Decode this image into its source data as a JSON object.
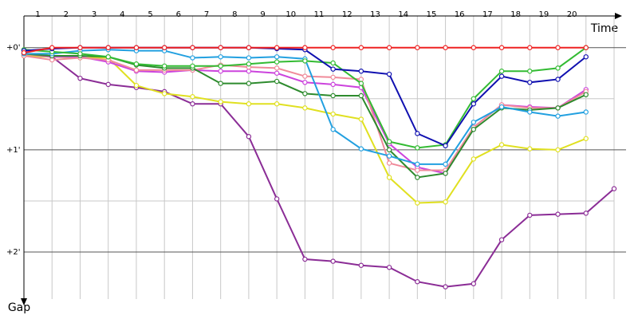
{
  "chart_data": {
    "type": "line",
    "x_title": "Time",
    "y_title": "Gap",
    "categories": [
      1,
      2,
      3,
      4,
      5,
      6,
      7,
      8,
      9,
      10,
      11,
      12,
      13,
      14,
      15,
      16,
      17,
      18,
      19,
      20
    ],
    "x": [
      0,
      1,
      2,
      3,
      4,
      5,
      6,
      7,
      8,
      9,
      10,
      11,
      12,
      13,
      14,
      15,
      16,
      17,
      18,
      19,
      20,
      21
    ],
    "xlim": [
      0,
      21
    ],
    "ylim": [
      -0.31,
      2.46
    ],
    "yticks": [
      {
        "value": 0,
        "label": "+0'"
      },
      {
        "value": 1,
        "label": "+1'"
      },
      {
        "value": 2,
        "label": "+2'"
      }
    ],
    "minor_yticks": [
      0.5,
      1.5
    ],
    "grid": true,
    "series": [
      {
        "color": "#8b2d96",
        "values": [
          0.08,
          0.09,
          0.3,
          0.36,
          0.39,
          0.43,
          0.55,
          0.55,
          0.87,
          1.48,
          2.07,
          2.09,
          2.13,
          2.15,
          2.29,
          2.34,
          2.31,
          1.88,
          1.64,
          1.63,
          1.62,
          1.38
        ]
      },
      {
        "color": "#e0e020",
        "values": [
          0.08,
          0.09,
          0.1,
          0.1,
          0.37,
          0.45,
          0.48,
          0.53,
          0.55,
          0.55,
          0.59,
          0.65,
          0.7,
          1.27,
          1.52,
          1.51,
          1.09,
          0.95,
          0.99,
          1,
          0.89,
          null
        ]
      },
      {
        "color": "#cc44dd",
        "values": [
          0.06,
          0.09,
          0.09,
          0.14,
          0.23,
          0.24,
          0.22,
          0.23,
          0.23,
          0.25,
          0.34,
          0.36,
          0.39,
          0.94,
          1.17,
          1.23,
          0.78,
          0.56,
          0.58,
          0.59,
          0.41,
          null
        ]
      },
      {
        "color": "#f08a9a",
        "values": [
          0.08,
          0.12,
          0.1,
          0.12,
          0.22,
          0.22,
          0.22,
          0.17,
          0.19,
          0.2,
          0.28,
          0.29,
          0.31,
          1.13,
          1.2,
          1.2,
          0.78,
          0.56,
          0.59,
          0.59,
          0.43,
          null
        ]
      },
      {
        "color": "#2e8b2e",
        "values": [
          0.06,
          0.08,
          0.08,
          0.09,
          0.17,
          0.2,
          0.2,
          0.35,
          0.35,
          0.33,
          0.45,
          0.47,
          0.47,
          1,
          1.27,
          1.23,
          0.8,
          0.59,
          0.61,
          0.59,
          0.46,
          null
        ]
      },
      {
        "color": "#22a0e0",
        "values": [
          0.06,
          0.06,
          0.03,
          0.02,
          0.03,
          0.03,
          0.1,
          0.09,
          0.1,
          0.09,
          0.11,
          0.8,
          0.99,
          1.06,
          1.14,
          1.14,
          0.73,
          0.58,
          0.63,
          0.67,
          0.63,
          null
        ]
      },
      {
        "color": "#33bb33",
        "values": [
          0.02,
          0.04,
          0.06,
          0.09,
          0.16,
          0.18,
          0.18,
          0.18,
          0.16,
          0.14,
          0.13,
          0.15,
          0.35,
          0.92,
          0.98,
          0.95,
          0.5,
          0.23,
          0.23,
          0.2,
          0,
          null
        ]
      },
      {
        "color": "#1010b0",
        "values": [
          0.03,
          0.01,
          0,
          0,
          0,
          0,
          0,
          0,
          0,
          0.01,
          0.02,
          0.21,
          0.23,
          0.26,
          0.84,
          0.96,
          0.55,
          0.28,
          0.34,
          0.31,
          0.09,
          null
        ]
      },
      {
        "color": "#ee2222",
        "values": [
          0.05,
          0,
          0,
          0,
          0,
          0,
          0,
          0,
          0,
          0,
          0,
          0,
          0,
          0,
          0,
          0,
          0,
          0,
          0,
          0,
          0,
          null
        ]
      }
    ]
  }
}
